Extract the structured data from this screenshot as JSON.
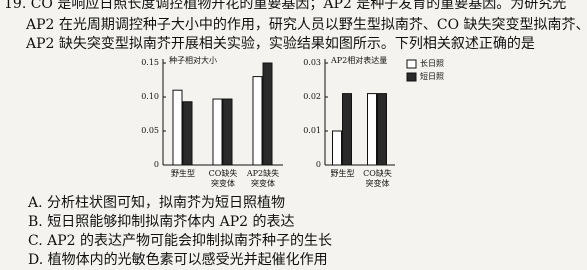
{
  "question": {
    "stem": [
      "19. CO 是响应日照长度调控植物开花的重要基因；AP2 是种子发育的重要基因。为研究光",
      "AP2 在光周期调控种子大小中的作用，研究人员以野生型拟南芥、CO 缺失突变型拟南芥、",
      "AP2 缺失突变型拟南芥开展相关实验，实验结果如图所示。下列相关叙述正确的是"
    ],
    "options": [
      "A. 分析柱状图可知，拟南芥为短日照植物",
      "B. 短日照能够抑制拟南芥体内 AP2 的表达",
      "C. AP2 的表达产物可能会抑制拟南芥种子的生长",
      "D. 植物体内的光敏色素可以感受光并起催化作用"
    ]
  },
  "chart_data": [
    {
      "type": "bar",
      "title": "种子相对大小",
      "categories": [
        "野生型",
        "CO缺失\n突变体",
        "AP2缺失\n突变体"
      ],
      "series": [
        {
          "color": "#ffffff",
          "values": [
            0.11,
            0.097,
            0.13
          ]
        },
        {
          "color": "#2a2a2a",
          "values": [
            0.093,
            0.097,
            0.15
          ]
        }
      ],
      "ylim": [
        0,
        0.15
      ],
      "yticks": [
        0,
        0.05,
        {
          "value": 0.1,
          "label": "0.10"
        },
        0.15
      ]
    },
    {
      "type": "bar",
      "title": "AP2相对表达量",
      "categories": [
        "野生型",
        "CO缺失\n突变体"
      ],
      "series": [
        {
          "name": "长日照",
          "color": "#ffffff",
          "values": [
            0.01,
            0.021
          ]
        },
        {
          "name": "短日照",
          "color": "#2a2a2a",
          "values": [
            0.021,
            0.021
          ]
        }
      ],
      "ylim": [
        0,
        0.03
      ],
      "yticks": [
        0,
        0.01,
        0.02,
        0.03
      ],
      "legend": "right"
    }
  ]
}
